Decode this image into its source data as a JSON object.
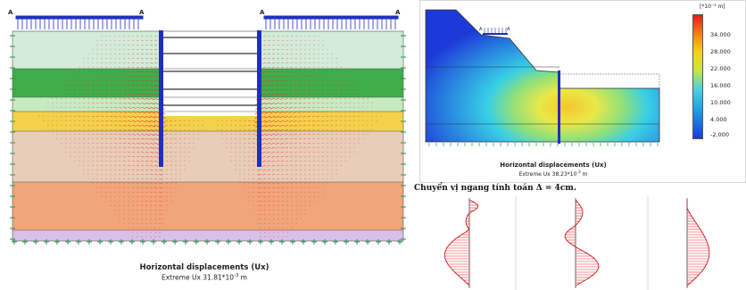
{
  "left_figure": {
    "caption_title": "Horizontal displacements (Ux)",
    "caption_sub_prefix": "Extreme Ux 31.81*10",
    "caption_sub_exp": "-3",
    "caption_sub_unit": " m",
    "load_markers": [
      "A",
      "A",
      "A",
      "A"
    ]
  },
  "right_figure": {
    "caption_title": "Horizontal displacements (Ux)",
    "caption_sub_prefix": "Extreme Ux 38.23*10",
    "caption_sub_exp": "-3",
    "caption_sub_unit": " m",
    "load_markers": [
      "A",
      "A"
    ],
    "legend_title": "[*10⁻³ m]",
    "legend_labels": [
      "34.000",
      "28.000",
      "22.000",
      "16.000",
      "10.000",
      "4.000",
      "-2.000"
    ]
  },
  "bottom_text": "Chuyển vị ngang tính toán  Δ = 4cm.",
  "colors": {
    "soil_layers": [
      "#d2ecd9",
      "#3fae4a",
      "#c8eac0",
      "#f2d24a",
      "#e8cdb8",
      "#f1a57a",
      "#d9c0ec"
    ],
    "arrow": "#e8262a",
    "wall": "#1d2fbf"
  }
}
